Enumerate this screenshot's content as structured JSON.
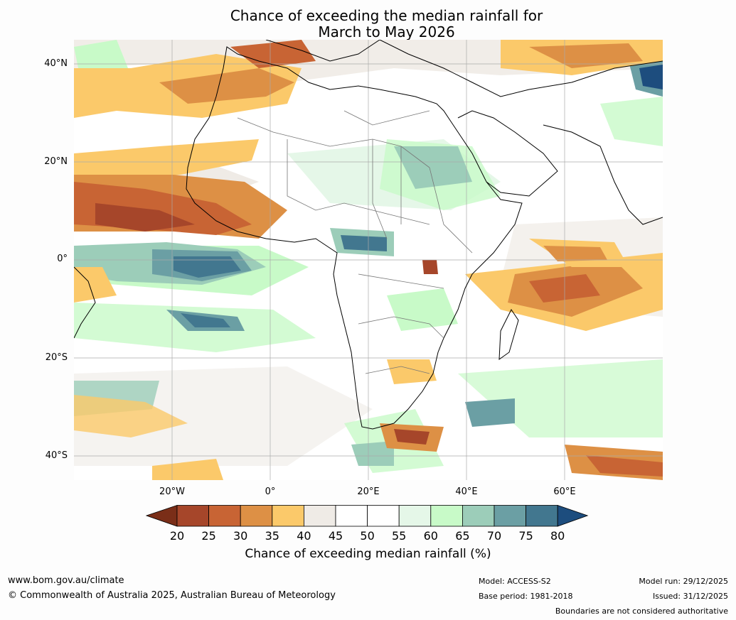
{
  "title": {
    "line1": "Chance of exceeding the median rainfall for",
    "line2": "March to May 2026"
  },
  "map": {
    "region": "Africa, southwest Asia and surrounding oceans",
    "lat_labels": [
      "40°N",
      "20°N",
      "0°",
      "20°S",
      "40°S"
    ],
    "lon_labels": [
      "20°W",
      "0°",
      "20°E",
      "40°E",
      "60°E"
    ],
    "labels_note": "Boundaries are not considered authoritative"
  },
  "legend": {
    "ticks": [
      "20",
      "25",
      "30",
      "35",
      "40",
      "45",
      "50",
      "55",
      "60",
      "65",
      "70",
      "75",
      "80"
    ],
    "colors": [
      "#7a2e18",
      "#a6462a",
      "#c86434",
      "#dd9045",
      "#fbc96a",
      "#efebe6",
      "#ffffff",
      "#ffffff",
      "#e5f7e8",
      "#c8fac8",
      "#9ccdb9",
      "#6b9fa4",
      "#42778f",
      "#1d4d7e"
    ],
    "label": "Chance of exceeding median rainfall (%)"
  },
  "footer": {
    "website": "www.bom.gov.au/climate",
    "copyright": "© Commonwealth of Australia 2025, Australian Bureau of Meteorology",
    "model": "Model: ACCESS-S2",
    "base_period": "Base period: 1981-2018",
    "model_run": "Model run: 29/12/2025",
    "issued": "Issued: 31/12/2025",
    "boundaries": "Boundaries are not considered authoritative"
  }
}
